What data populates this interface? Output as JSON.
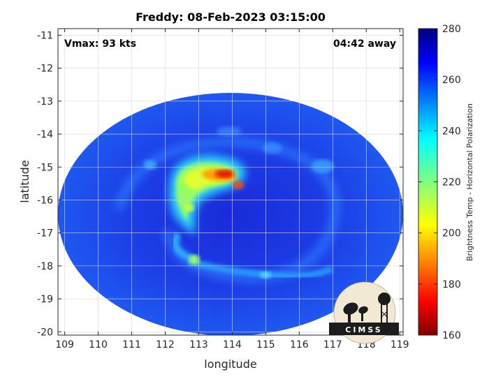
{
  "title": "Freddy: 08-Feb-2023 03:15:00",
  "vmax_text": "Vmax: 93 kts",
  "time_away_text": "04:42 away",
  "xlabel": "longitude",
  "ylabel": "latitude",
  "x_ticks": [
    "109",
    "110",
    "111",
    "112",
    "113",
    "114",
    "115",
    "116",
    "117",
    "118",
    "119"
  ],
  "y_ticks": [
    "-11",
    "-12",
    "-13",
    "-14",
    "-15",
    "-16",
    "-17",
    "-18",
    "-19",
    "-20"
  ],
  "colorbar": {
    "label": "Brightness Temp - Horizontal Polarization",
    "ticks": [
      "280",
      "260",
      "240",
      "220",
      "200",
      "180",
      "160"
    ],
    "range": [
      160,
      280
    ],
    "colormap": "jet"
  },
  "logo_text": "CIMSS",
  "map": {
    "lon_range": [
      108.8,
      119.1
    ],
    "lat_range": [
      -20.1,
      -10.8
    ],
    "swath_center": [
      113.95,
      -15.7
    ],
    "storm_center": [
      113.9,
      -15.1
    ],
    "background_temp": 265,
    "features": [
      {
        "kind": "rainband",
        "lon": 113.2,
        "lat": -15.35,
        "temp": 222
      },
      {
        "kind": "eyewall",
        "lon": 113.6,
        "lat": -15.0,
        "temp": 180
      },
      {
        "kind": "eyewall",
        "lon": 114.1,
        "lat": -15.25,
        "temp": 190
      },
      {
        "kind": "band",
        "lon": 112.8,
        "lat": -17.8,
        "temp": 232
      },
      {
        "kind": "band",
        "lon": 114.5,
        "lat": -18.2,
        "temp": 245
      },
      {
        "kind": "cell",
        "lon": 116.8,
        "lat": -14.7,
        "temp": 245
      },
      {
        "kind": "cell",
        "lon": 111.4,
        "lat": -14.6,
        "temp": 240
      }
    ]
  }
}
